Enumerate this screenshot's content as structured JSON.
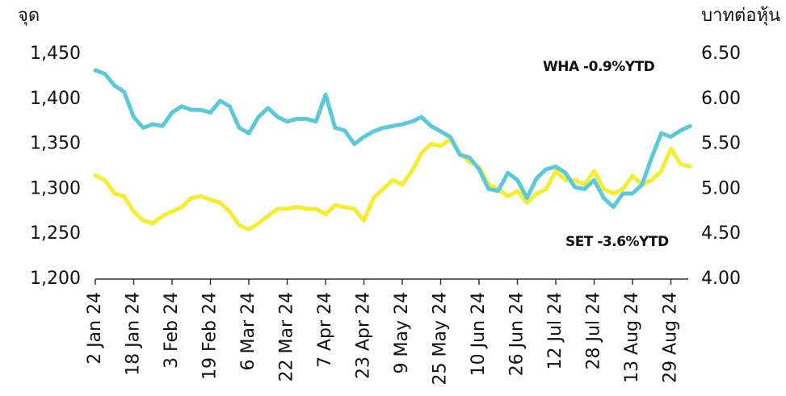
{
  "chart_data": {
    "type": "line",
    "y_label": "จุด",
    "y2_label": "บาทต่อหุ้น",
    "categories": [
      "2 Jan 24",
      null,
      null,
      null,
      "18 Jan 24",
      null,
      null,
      null,
      "3 Feb 24",
      null,
      null,
      null,
      "19 Feb 24",
      null,
      null,
      null,
      "6 Mar 24",
      null,
      null,
      null,
      "22 Mar 24",
      null,
      null,
      null,
      "7 Apr 24",
      null,
      null,
      null,
      "23 Apr 24",
      null,
      null,
      null,
      "9 May 24",
      null,
      null,
      null,
      "25 May 24",
      null,
      null,
      null,
      "10 Jun 24",
      null,
      null,
      null,
      "26 Jun 24",
      null,
      null,
      null,
      "12 Jul 24",
      null,
      null,
      null,
      "28 Jul 24",
      null,
      null,
      null,
      "13 Aug 24",
      null,
      null,
      null,
      "29 Aug 24",
      null,
      null
    ],
    "series": [
      {
        "name": "SET -3.6%YTD",
        "color": "#5cc8dc",
        "axis": "y",
        "values": [
          1432,
          1428,
          1415,
          1408,
          1380,
          1368,
          1372,
          1370,
          1385,
          1392,
          1388,
          1388,
          1385,
          1398,
          1392,
          1368,
          1362,
          1380,
          1390,
          1380,
          1375,
          1378,
          1378,
          1375,
          1405,
          1368,
          1365,
          1350,
          1358,
          1364,
          1368,
          1370,
          1372,
          1375,
          1380,
          1370,
          1364,
          1358,
          1338,
          1335,
          1322,
          1300,
          1298,
          1318,
          1310,
          1290,
          1312,
          1322,
          1325,
          1318,
          1302,
          1300,
          1310,
          1290,
          1280,
          1295,
          1295,
          1305,
          1335,
          1362,
          1358,
          1365,
          1370
        ]
      },
      {
        "name": "WHA -0.9%YTD",
        "color": "#f7ec2e",
        "axis": "y2",
        "values": [
          5.15,
          5.1,
          4.95,
          4.92,
          4.75,
          4.65,
          4.62,
          4.7,
          4.75,
          4.8,
          4.9,
          4.92,
          4.88,
          4.85,
          4.75,
          4.6,
          4.55,
          4.62,
          4.7,
          4.78,
          4.78,
          4.8,
          4.78,
          4.78,
          4.72,
          4.82,
          4.8,
          4.78,
          4.65,
          4.9,
          5.0,
          5.1,
          5.05,
          5.2,
          5.4,
          5.5,
          5.48,
          5.55,
          5.4,
          5.3,
          5.25,
          5.05,
          5.0,
          4.92,
          4.98,
          4.85,
          4.95,
          5.0,
          5.2,
          5.1,
          5.1,
          5.05,
          5.2,
          5.0,
          4.95,
          5.0,
          5.15,
          5.05,
          5.1,
          5.2,
          5.45,
          5.28,
          5.25
        ]
      }
    ],
    "ylim": [
      1200,
      1450
    ],
    "yticks": [
      {
        "value": 1200,
        "label": "1,200"
      },
      {
        "value": 1250,
        "label": "1,250"
      },
      {
        "value": 1300,
        "label": "1,300"
      },
      {
        "value": 1350,
        "label": "1,350"
      },
      {
        "value": 1400,
        "label": "1,400"
      },
      {
        "value": 1450,
        "label": "1,450"
      }
    ],
    "y2lim": [
      4,
      6.5
    ],
    "y2ticks": [
      {
        "value": 4,
        "label": "4.00"
      },
      {
        "value": 4.5,
        "label": "4.50"
      },
      {
        "value": 5,
        "label": "5.00"
      },
      {
        "value": 5.5,
        "label": "5.50"
      },
      {
        "value": 6,
        "label": "6.00"
      },
      {
        "value": 6.5,
        "label": "6.50"
      }
    ],
    "grid": false
  }
}
